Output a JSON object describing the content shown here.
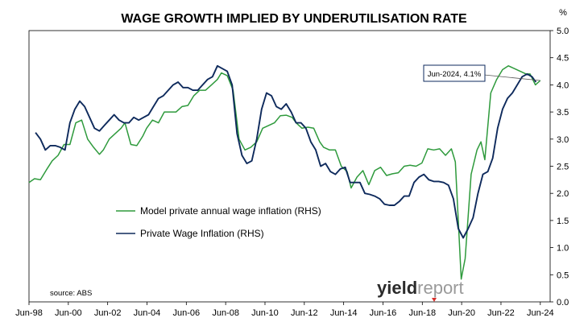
{
  "chart_data": {
    "type": "line",
    "title": "WAGE GROWTH IMPLIED BY UNDERUTILISATION RATE",
    "y_unit_label": "%",
    "ylim": [
      0,
      5
    ],
    "y_ticks": [
      "0.0",
      "0.5",
      "1.0",
      "1.5",
      "2.0",
      "2.5",
      "3.0",
      "3.5",
      "4.0",
      "4.5",
      "5.0"
    ],
    "xlim": [
      1998.42,
      2024.92
    ],
    "x_ticks": [
      {
        "year": 1998.42,
        "label": "Jun-98"
      },
      {
        "year": 2000.42,
        "label": "Jun-00"
      },
      {
        "year": 2002.42,
        "label": "Jun-02"
      },
      {
        "year": 2004.42,
        "label": "Jun-04"
      },
      {
        "year": 2006.42,
        "label": "Jun-06"
      },
      {
        "year": 2008.42,
        "label": "Jun-08"
      },
      {
        "year": 2010.42,
        "label": "Jun-10"
      },
      {
        "year": 2012.42,
        "label": "Jun-12"
      },
      {
        "year": 2014.42,
        "label": "Jun-14"
      },
      {
        "year": 2016.42,
        "label": "Jun-16"
      },
      {
        "year": 2018.42,
        "label": "Jun-18"
      },
      {
        "year": 2020.42,
        "label": "Jun-20"
      },
      {
        "year": 2022.42,
        "label": "Jun-22"
      },
      {
        "year": 2024.42,
        "label": "Jun-24"
      }
    ],
    "grid": false,
    "legend_position": "lower-left",
    "series": [
      {
        "name": "Model private annual wage inflation (RHS)",
        "color": "#2e9a3c",
        "points": [
          [
            1998.42,
            2.2
          ],
          [
            1998.7,
            2.27
          ],
          [
            1999.0,
            2.25
          ],
          [
            1999.3,
            2.43
          ],
          [
            1999.6,
            2.6
          ],
          [
            1999.9,
            2.7
          ],
          [
            2000.2,
            2.9
          ],
          [
            2000.5,
            2.9
          ],
          [
            2000.8,
            3.3
          ],
          [
            2001.1,
            3.35
          ],
          [
            2001.4,
            3.0
          ],
          [
            2001.7,
            2.85
          ],
          [
            2002.0,
            2.72
          ],
          [
            2002.2,
            2.8
          ],
          [
            2002.5,
            3.0
          ],
          [
            2002.8,
            3.1
          ],
          [
            2003.1,
            3.2
          ],
          [
            2003.3,
            3.3
          ],
          [
            2003.6,
            2.9
          ],
          [
            2003.9,
            2.88
          ],
          [
            2004.2,
            3.05
          ],
          [
            2004.4,
            3.2
          ],
          [
            2004.7,
            3.35
          ],
          [
            2005.0,
            3.3
          ],
          [
            2005.3,
            3.5
          ],
          [
            2005.6,
            3.5
          ],
          [
            2005.9,
            3.5
          ],
          [
            2006.2,
            3.6
          ],
          [
            2006.5,
            3.62
          ],
          [
            2006.8,
            3.8
          ],
          [
            2007.1,
            3.9
          ],
          [
            2007.4,
            3.9
          ],
          [
            2007.7,
            4.0
          ],
          [
            2008.0,
            4.1
          ],
          [
            2008.2,
            4.22
          ],
          [
            2008.5,
            4.17
          ],
          [
            2008.8,
            3.9
          ],
          [
            2009.1,
            3.0
          ],
          [
            2009.4,
            2.8
          ],
          [
            2009.7,
            2.85
          ],
          [
            2010.0,
            2.95
          ],
          [
            2010.3,
            3.2
          ],
          [
            2010.6,
            3.25
          ],
          [
            2010.9,
            3.3
          ],
          [
            2011.2,
            3.43
          ],
          [
            2011.5,
            3.44
          ],
          [
            2011.8,
            3.4
          ],
          [
            2012.0,
            3.3
          ],
          [
            2012.3,
            3.2
          ],
          [
            2012.6,
            3.22
          ],
          [
            2012.9,
            3.2
          ],
          [
            2013.2,
            2.95
          ],
          [
            2013.4,
            2.85
          ],
          [
            2013.7,
            2.8
          ],
          [
            2014.0,
            2.8
          ],
          [
            2014.3,
            2.5
          ],
          [
            2014.6,
            2.4
          ],
          [
            2014.8,
            2.1
          ],
          [
            2015.1,
            2.3
          ],
          [
            2015.4,
            2.42
          ],
          [
            2015.7,
            2.16
          ],
          [
            2016.0,
            2.42
          ],
          [
            2016.3,
            2.48
          ],
          [
            2016.6,
            2.33
          ],
          [
            2016.9,
            2.36
          ],
          [
            2017.2,
            2.38
          ],
          [
            2017.5,
            2.5
          ],
          [
            2017.8,
            2.52
          ],
          [
            2018.1,
            2.5
          ],
          [
            2018.4,
            2.56
          ],
          [
            2018.7,
            2.82
          ],
          [
            2019.0,
            2.8
          ],
          [
            2019.3,
            2.82
          ],
          [
            2019.6,
            2.7
          ],
          [
            2019.9,
            2.82
          ],
          [
            2020.1,
            2.58
          ],
          [
            2020.4,
            0.42
          ],
          [
            2020.6,
            0.8
          ],
          [
            2020.9,
            2.35
          ],
          [
            2021.2,
            2.8
          ],
          [
            2021.4,
            2.95
          ],
          [
            2021.6,
            2.62
          ],
          [
            2021.9,
            3.85
          ],
          [
            2022.2,
            4.1
          ],
          [
            2022.5,
            4.28
          ],
          [
            2022.8,
            4.35
          ],
          [
            2023.1,
            4.3
          ],
          [
            2023.4,
            4.25
          ],
          [
            2023.7,
            4.2
          ],
          [
            2023.9,
            4.2
          ],
          [
            2024.17,
            4.0
          ],
          [
            2024.42,
            4.08
          ]
        ]
      },
      {
        "name": "Private Wage Inflation (RHS)",
        "color": "#0e2a5c",
        "points": [
          [
            1998.75,
            3.12
          ],
          [
            1999.0,
            3.0
          ],
          [
            1999.25,
            2.8
          ],
          [
            1999.5,
            2.88
          ],
          [
            1999.75,
            2.88
          ],
          [
            2000.0,
            2.85
          ],
          [
            2000.25,
            2.8
          ],
          [
            2000.5,
            3.3
          ],
          [
            2000.75,
            3.55
          ],
          [
            2001.0,
            3.7
          ],
          [
            2001.25,
            3.6
          ],
          [
            2001.5,
            3.4
          ],
          [
            2001.75,
            3.2
          ],
          [
            2002.0,
            3.15
          ],
          [
            2002.25,
            3.25
          ],
          [
            2002.5,
            3.35
          ],
          [
            2002.75,
            3.45
          ],
          [
            2003.0,
            3.35
          ],
          [
            2003.25,
            3.3
          ],
          [
            2003.5,
            3.3
          ],
          [
            2003.75,
            3.4
          ],
          [
            2004.0,
            3.35
          ],
          [
            2004.25,
            3.4
          ],
          [
            2004.5,
            3.45
          ],
          [
            2004.75,
            3.6
          ],
          [
            2005.0,
            3.75
          ],
          [
            2005.25,
            3.8
          ],
          [
            2005.5,
            3.9
          ],
          [
            2005.75,
            4.0
          ],
          [
            2006.0,
            4.05
          ],
          [
            2006.25,
            3.95
          ],
          [
            2006.5,
            3.95
          ],
          [
            2006.75,
            3.9
          ],
          [
            2007.0,
            3.9
          ],
          [
            2007.25,
            4.0
          ],
          [
            2007.5,
            4.1
          ],
          [
            2007.75,
            4.15
          ],
          [
            2008.0,
            4.35
          ],
          [
            2008.25,
            4.3
          ],
          [
            2008.5,
            4.25
          ],
          [
            2008.75,
            4.0
          ],
          [
            2009.0,
            3.1
          ],
          [
            2009.25,
            2.7
          ],
          [
            2009.5,
            2.55
          ],
          [
            2009.75,
            2.6
          ],
          [
            2010.0,
            3.0
          ],
          [
            2010.25,
            3.55
          ],
          [
            2010.5,
            3.85
          ],
          [
            2010.75,
            3.8
          ],
          [
            2011.0,
            3.6
          ],
          [
            2011.25,
            3.55
          ],
          [
            2011.5,
            3.65
          ],
          [
            2011.75,
            3.5
          ],
          [
            2012.0,
            3.3
          ],
          [
            2012.25,
            3.3
          ],
          [
            2012.5,
            3.2
          ],
          [
            2012.75,
            2.95
          ],
          [
            2013.0,
            2.8
          ],
          [
            2013.25,
            2.5
          ],
          [
            2013.5,
            2.55
          ],
          [
            2013.75,
            2.4
          ],
          [
            2014.0,
            2.35
          ],
          [
            2014.25,
            2.45
          ],
          [
            2014.5,
            2.48
          ],
          [
            2014.75,
            2.2
          ],
          [
            2015.0,
            2.2
          ],
          [
            2015.25,
            2.2
          ],
          [
            2015.5,
            2.0
          ],
          [
            2015.75,
            1.98
          ],
          [
            2016.0,
            1.95
          ],
          [
            2016.25,
            1.9
          ],
          [
            2016.5,
            1.8
          ],
          [
            2016.75,
            1.78
          ],
          [
            2017.0,
            1.78
          ],
          [
            2017.25,
            1.85
          ],
          [
            2017.5,
            1.95
          ],
          [
            2017.75,
            1.95
          ],
          [
            2018.0,
            2.2
          ],
          [
            2018.25,
            2.3
          ],
          [
            2018.5,
            2.35
          ],
          [
            2018.75,
            2.25
          ],
          [
            2019.0,
            2.22
          ],
          [
            2019.25,
            2.22
          ],
          [
            2019.5,
            2.2
          ],
          [
            2019.75,
            2.15
          ],
          [
            2020.0,
            1.9
          ],
          [
            2020.25,
            1.35
          ],
          [
            2020.5,
            1.18
          ],
          [
            2020.75,
            1.35
          ],
          [
            2021.0,
            1.55
          ],
          [
            2021.25,
            2.0
          ],
          [
            2021.5,
            2.35
          ],
          [
            2021.75,
            2.4
          ],
          [
            2022.0,
            2.65
          ],
          [
            2022.25,
            3.2
          ],
          [
            2022.5,
            3.55
          ],
          [
            2022.75,
            3.75
          ],
          [
            2023.0,
            3.85
          ],
          [
            2023.25,
            4.0
          ],
          [
            2023.5,
            4.15
          ],
          [
            2023.75,
            4.2
          ],
          [
            2024.0,
            4.15
          ],
          [
            2024.2,
            4.05
          ]
        ]
      }
    ],
    "annotation": {
      "text": "Jun-2024, 4.1%",
      "year": 2024.42,
      "value": 4.08
    },
    "source": "source: ABS"
  },
  "logo": {
    "part_a": "yield",
    "part_b": "report"
  }
}
